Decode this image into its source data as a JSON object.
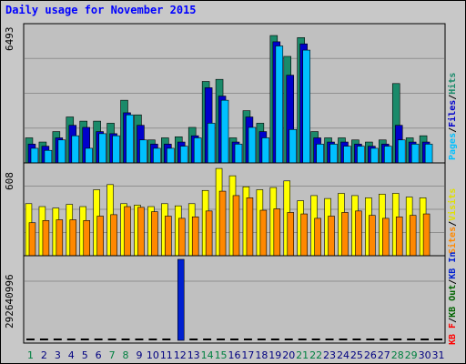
{
  "title": "Daily usage for November 2015",
  "colors": {
    "hits": "#1a8a6a",
    "files": "#0000cc",
    "pages": "#00c0ff",
    "visits": "#ffff00",
    "sites": "#ff8800",
    "kbin": "#0020d0",
    "kbout": "#006400",
    "kbf": "#ff0000",
    "weekend_label": "#008040",
    "weekday_label": "#000080"
  },
  "legends": {
    "top": [
      "Pages",
      "Files",
      "Hits"
    ],
    "mid": [
      "Sites",
      "Visits"
    ],
    "bot": [
      "KB F",
      "KB Out",
      "KB In"
    ]
  },
  "chart_data": [
    {
      "type": "bar",
      "panel": "requests",
      "ymax_label": "6493",
      "ylim": [
        0,
        6493
      ],
      "categories": [
        "1",
        "2",
        "3",
        "4",
        "5",
        "6",
        "7",
        "8",
        "9",
        "10",
        "11",
        "12",
        "13",
        "14",
        "15",
        "16",
        "17",
        "18",
        "19",
        "20",
        "21",
        "22",
        "23",
        "24",
        "25",
        "26",
        "27",
        "28",
        "29",
        "30",
        "31"
      ],
      "weekend_days": [
        "1",
        "7",
        "8",
        "14",
        "15",
        "21",
        "22",
        "28",
        "29"
      ],
      "series": [
        {
          "name": "Hits",
          "values": [
            1200,
            1000,
            1500,
            2200,
            2000,
            2000,
            1900,
            3000,
            2300,
            1100,
            1200,
            1250,
            1700,
            3900,
            4000,
            1200,
            2500,
            1900,
            6100,
            5100,
            6000,
            1500,
            1200,
            1200,
            1100,
            1000,
            1100,
            3800,
            1200,
            1300,
            0
          ]
        },
        {
          "name": "Files",
          "values": [
            900,
            800,
            1200,
            1800,
            1700,
            1500,
            1400,
            2400,
            1800,
            900,
            900,
            1000,
            1300,
            3600,
            3200,
            1000,
            2200,
            1500,
            5800,
            4200,
            5700,
            1200,
            1000,
            1000,
            900,
            800,
            900,
            1800,
            1000,
            1000,
            0
          ]
        },
        {
          "name": "Pages",
          "values": [
            700,
            600,
            1100,
            1300,
            700,
            1400,
            1300,
            2300,
            1100,
            700,
            700,
            800,
            1200,
            1900,
            3000,
            900,
            1700,
            1200,
            5600,
            1600,
            5400,
            900,
            900,
            800,
            800,
            700,
            800,
            1100,
            900,
            900,
            0
          ]
        }
      ]
    },
    {
      "type": "bar",
      "panel": "visitors",
      "ymax_label": "608",
      "ylim": [
        0,
        608
      ],
      "categories": [
        "1",
        "2",
        "3",
        "4",
        "5",
        "6",
        "7",
        "8",
        "9",
        "10",
        "11",
        "12",
        "13",
        "14",
        "15",
        "16",
        "17",
        "18",
        "19",
        "20",
        "21",
        "22",
        "23",
        "24",
        "25",
        "26",
        "27",
        "28",
        "29",
        "30",
        "31"
      ],
      "series": [
        {
          "name": "Visits",
          "values": [
            355,
            335,
            325,
            350,
            335,
            450,
            485,
            355,
            345,
            335,
            355,
            340,
            355,
            445,
            595,
            545,
            470,
            450,
            465,
            510,
            375,
            410,
            390,
            425,
            410,
            395,
            420,
            425,
            400,
            395,
            0
          ]
        },
        {
          "name": "Sites",
          "values": [
            225,
            240,
            245,
            245,
            240,
            270,
            280,
            335,
            330,
            300,
            270,
            255,
            265,
            305,
            440,
            410,
            395,
            310,
            320,
            295,
            285,
            255,
            270,
            295,
            305,
            275,
            255,
            265,
            275,
            285,
            0
          ]
        }
      ]
    },
    {
      "type": "bar",
      "panel": "kbytes",
      "ymax_label": "292640996",
      "ylim": [
        0,
        292640996
      ],
      "categories": [
        "1",
        "2",
        "3",
        "4",
        "5",
        "6",
        "7",
        "8",
        "9",
        "10",
        "11",
        "12",
        "13",
        "14",
        "15",
        "16",
        "17",
        "18",
        "19",
        "20",
        "21",
        "22",
        "23",
        "24",
        "25",
        "26",
        "27",
        "28",
        "29",
        "30",
        "31"
      ],
      "series": [
        {
          "name": "KB In",
          "values": [
            0,
            0,
            0,
            0,
            0,
            0,
            0,
            0,
            0,
            0,
            0,
            292640996,
            0,
            0,
            0,
            0,
            0,
            0,
            0,
            0,
            0,
            0,
            0,
            0,
            0,
            0,
            0,
            0,
            0,
            0,
            0
          ]
        },
        {
          "name": "KB Out",
          "values": [
            0,
            0,
            0,
            0,
            0,
            0,
            0,
            0,
            0,
            0,
            0,
            0,
            0,
            0,
            0,
            0,
            0,
            0,
            0,
            0,
            0,
            0,
            0,
            0,
            0,
            0,
            0,
            0,
            0,
            0,
            0
          ]
        }
      ]
    }
  ]
}
